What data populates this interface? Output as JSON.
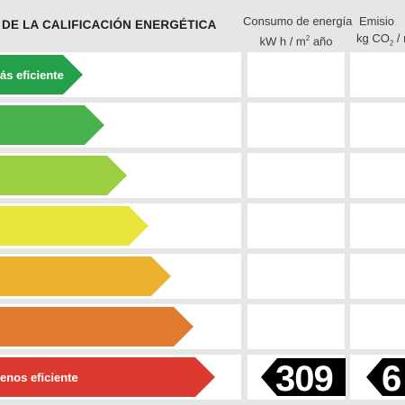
{
  "header": {
    "title": "DE LA CALIFICACIÓN ENERGÉTICA",
    "consumo_line1": "Consumo de energía",
    "consumo_line2": "kW h  / m",
    "consumo_sup": "2",
    "consumo_line2b": " año",
    "emisiones_line1": "Emisio",
    "emisiones_line2": "kg CO",
    "emisiones_sub": "2",
    "emisiones_line2b": "  / n"
  },
  "scale": {
    "top_label": "ás eficiente",
    "bottom_label": "enos eficiente",
    "colors": [
      "#24a04a",
      "#47b14e",
      "#9ccf40",
      "#eae53a",
      "#edb32e",
      "#e07b2f",
      "#dc3a2f"
    ]
  },
  "rating": {
    "consumo_value": "309",
    "emisiones_value": "6",
    "color": "#000000"
  }
}
